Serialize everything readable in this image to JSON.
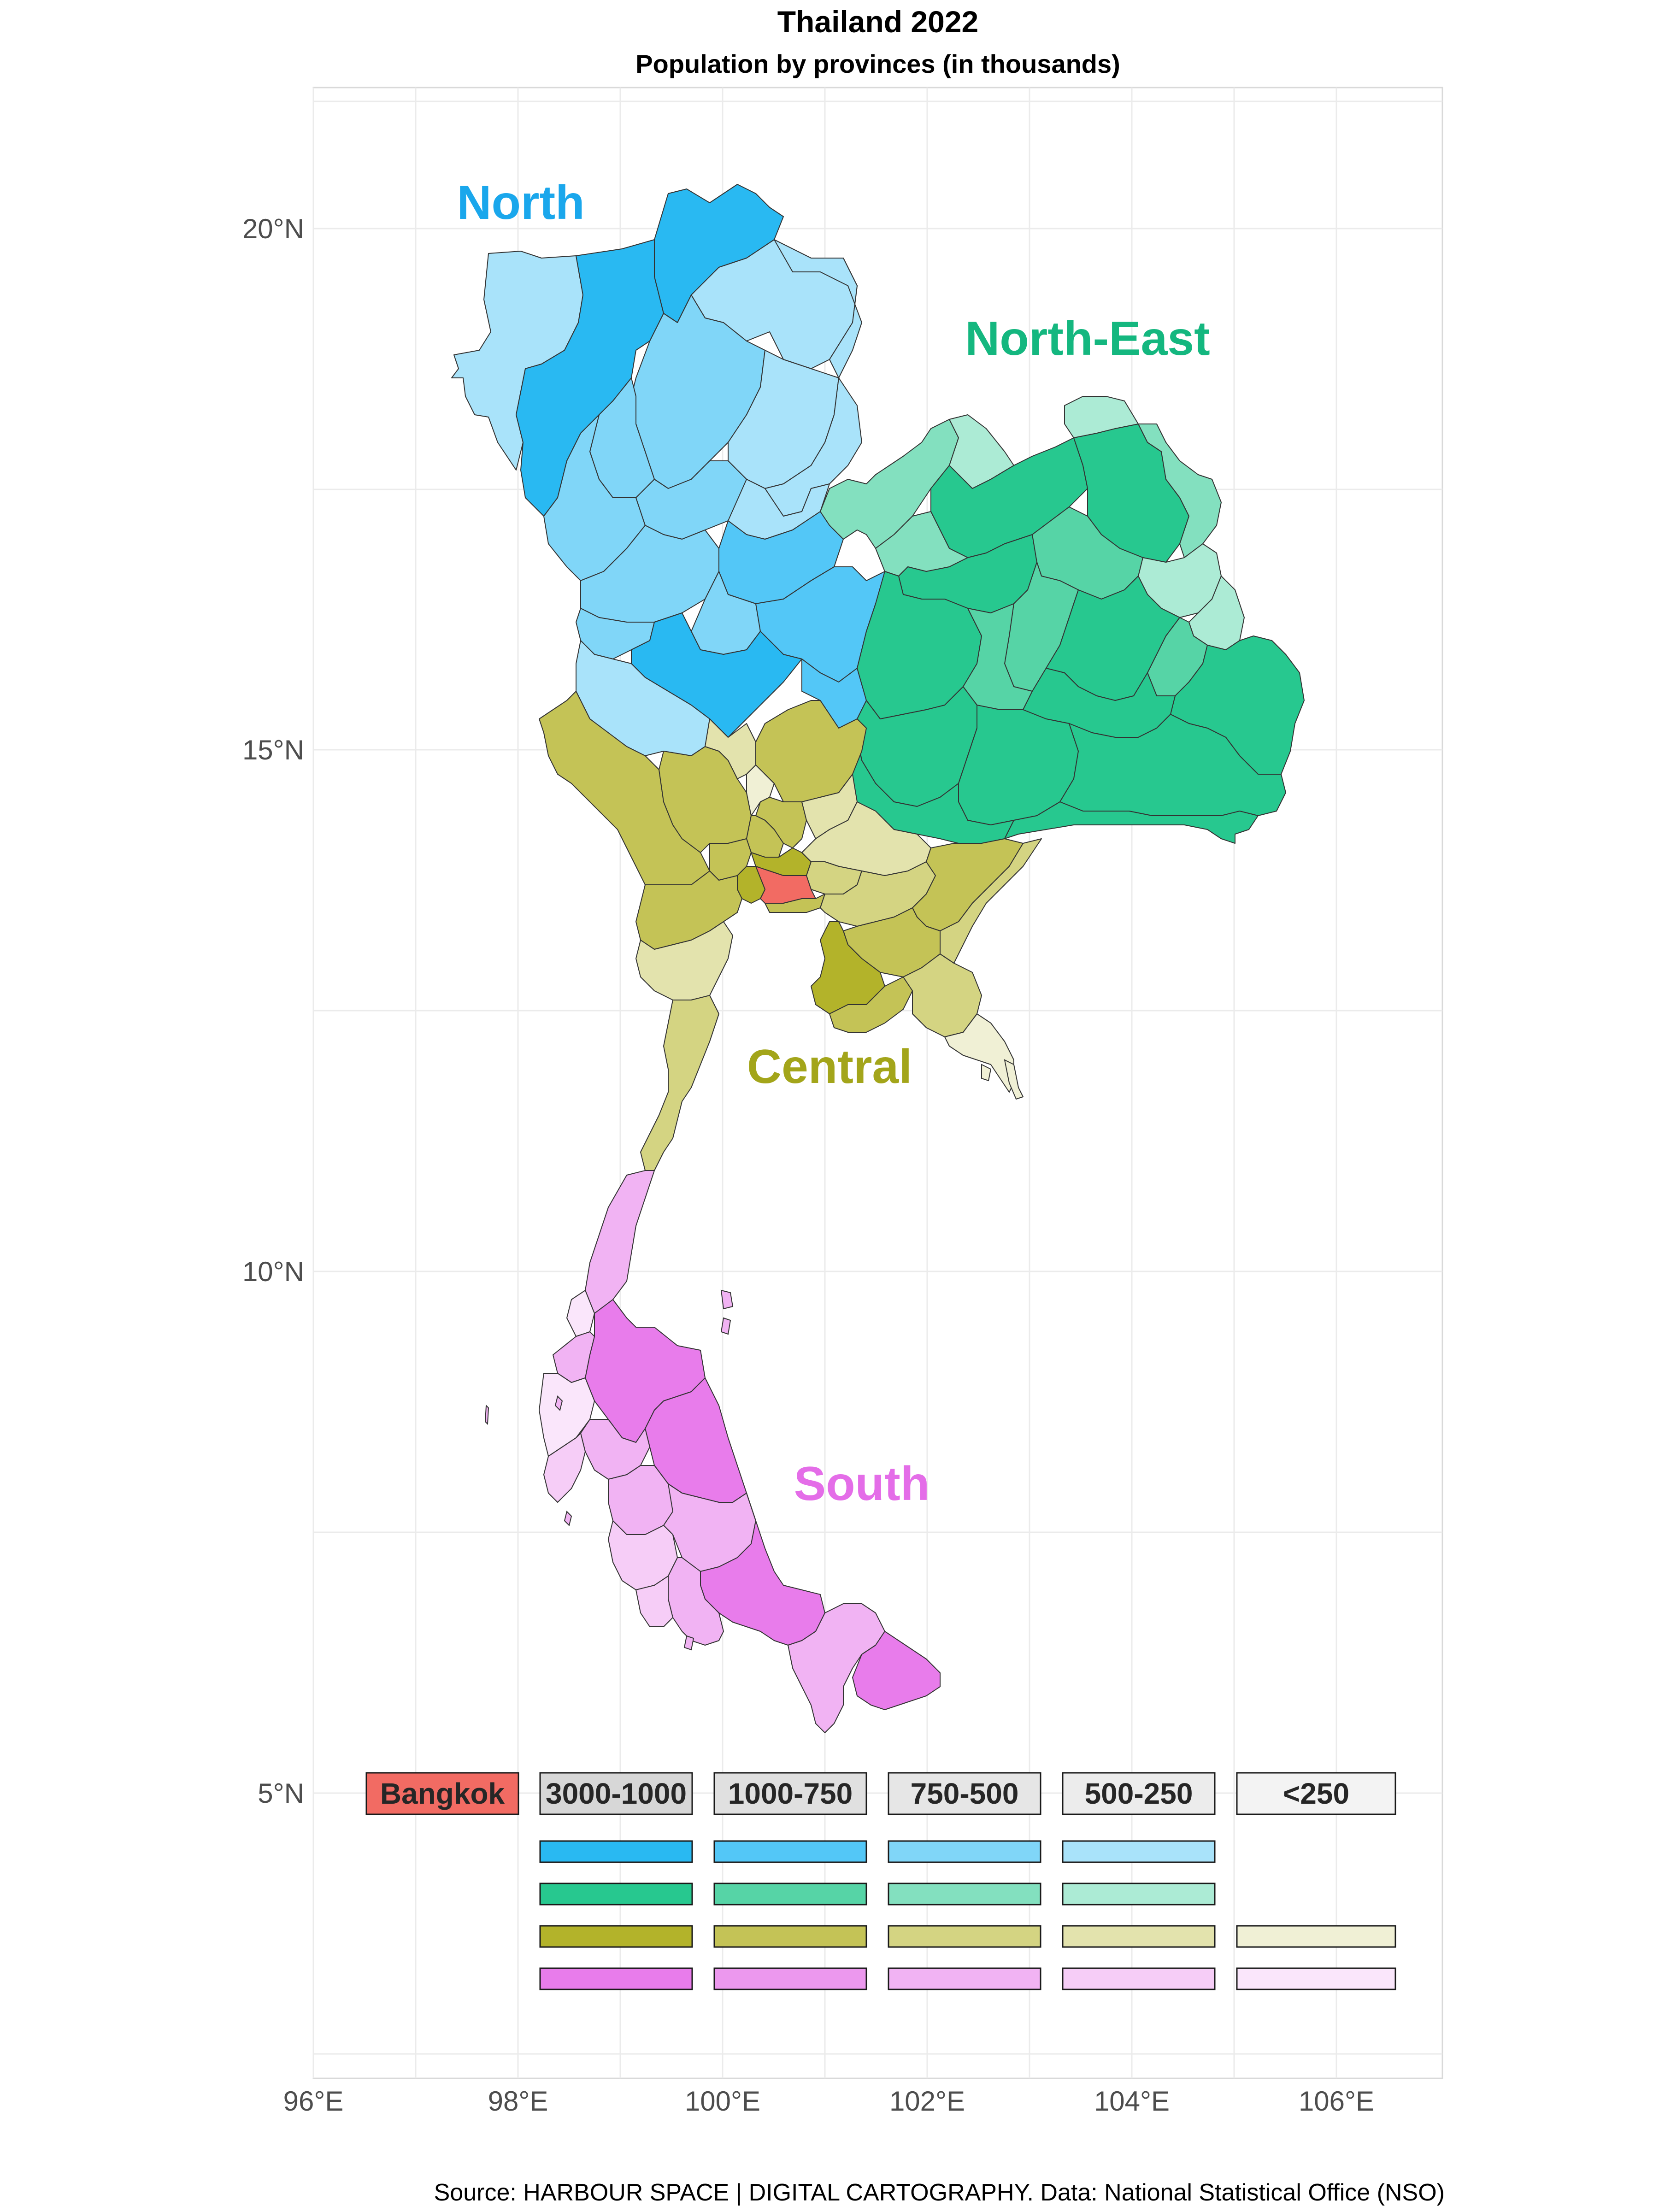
{
  "title": "Thailand 2022",
  "subtitle": "Population by provinces (in thousands)",
  "source": "Source: HARBOUR SPACE | DIGITAL CARTOGRAPHY. Data: National Statistical Office (NSO)",
  "axes": {
    "x_ticks": [
      "96°E",
      "98°E",
      "100°E",
      "102°E",
      "104°E",
      "106°E"
    ],
    "y_ticks": [
      "20°N",
      "15°N",
      "10°N",
      "5°N"
    ],
    "grid": true
  },
  "regions": [
    {
      "label": "North",
      "color": "#1aa7ec"
    },
    {
      "label": "North-East",
      "color": "#14b77f"
    },
    {
      "label": "Central",
      "color": "#a3a51a"
    },
    {
      "label": "South",
      "color": "#e46de8"
    }
  ],
  "legend": {
    "headers": [
      "Bangkok",
      "3000-1000",
      "1000-750",
      "750-500",
      "500-250",
      "<250"
    ],
    "bangkok_color": "#f26b63",
    "rows": [
      {
        "region": "North",
        "swatches": [
          "#29b9f2",
          "#53c7f7",
          "#80d6f8",
          "#a9e3fa"
        ]
      },
      {
        "region": "North-East",
        "swatches": [
          "#27c88f",
          "#56d4a6",
          "#83e0bf",
          "#acebd5"
        ]
      },
      {
        "region": "Central",
        "swatches": [
          "#b3b32a",
          "#c4c356",
          "#d4d482",
          "#e3e3ad",
          "#f0f0d5"
        ]
      },
      {
        "region": "South",
        "swatches": [
          "#e87ceb",
          "#ec98ee",
          "#f1b3f3",
          "#f6cdf7",
          "#fae6fb"
        ]
      }
    ]
  }
}
